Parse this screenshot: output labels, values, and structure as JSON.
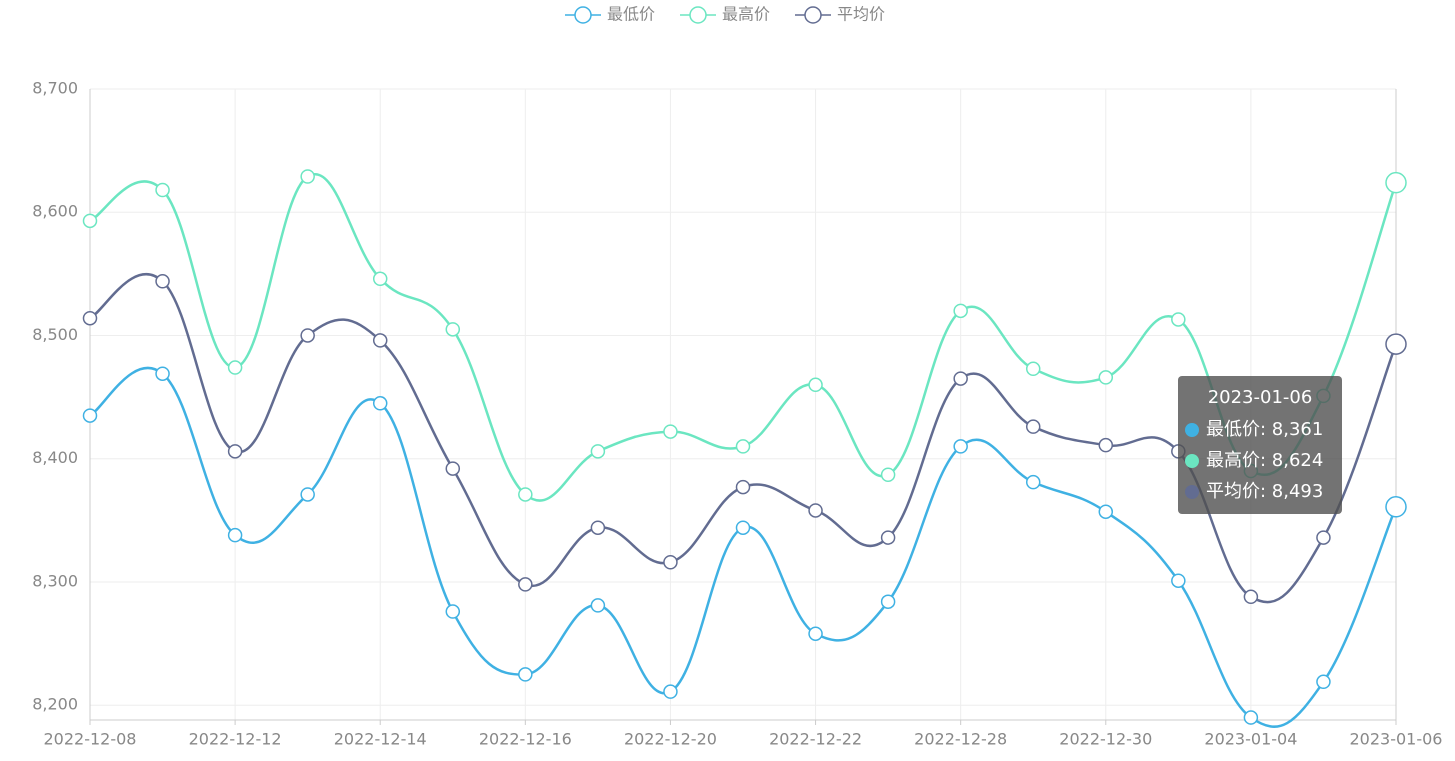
{
  "chart_data": {
    "type": "line",
    "categories": [
      "2022-12-08",
      null,
      "2022-12-12",
      null,
      "2022-12-14",
      null,
      "2022-12-16",
      null,
      "2022-12-20",
      null,
      "2022-12-22",
      null,
      "2022-12-28",
      null,
      "2022-12-30",
      null,
      "2023-01-04",
      null,
      "2023-01-06"
    ],
    "series": [
      {
        "name": "最低价",
        "color": "#3fb1e3",
        "values": [
          8435,
          8469,
          8338,
          8371,
          8445,
          8276,
          8225,
          8281,
          8211,
          8344,
          8258,
          8284,
          8410,
          8381,
          8357,
          8301,
          8190,
          8219,
          8361
        ]
      },
      {
        "name": "最高价",
        "color": "#6be6c1",
        "values": [
          8593,
          8618,
          8474,
          8629,
          8546,
          8505,
          8371,
          8406,
          8422,
          8410,
          8460,
          8387,
          8520,
          8473,
          8466,
          8513,
          8390,
          8451,
          8624
        ]
      },
      {
        "name": "平均价",
        "color": "#626c91",
        "values": [
          8514,
          8544,
          8406,
          8500,
          8496,
          8392,
          8298,
          8344,
          8316,
          8377,
          8358,
          8336,
          8465,
          8426,
          8411,
          8406,
          8288,
          8336,
          8493
        ]
      }
    ],
    "ylim": [
      8188,
      8700
    ],
    "yticks": [
      {
        "value": 8200,
        "label": "8,200"
      },
      {
        "value": 8300,
        "label": "8,300"
      },
      {
        "value": 8400,
        "label": "8,400"
      },
      {
        "value": 8500,
        "label": "8,500"
      },
      {
        "value": 8600,
        "label": "8,600"
      },
      {
        "value": 8700,
        "label": "8,700"
      }
    ],
    "grid": true,
    "legend": "top",
    "tooltip": {
      "index": 18,
      "value_labels": [
        "8,361",
        "8,624",
        "8,493"
      ]
    }
  }
}
